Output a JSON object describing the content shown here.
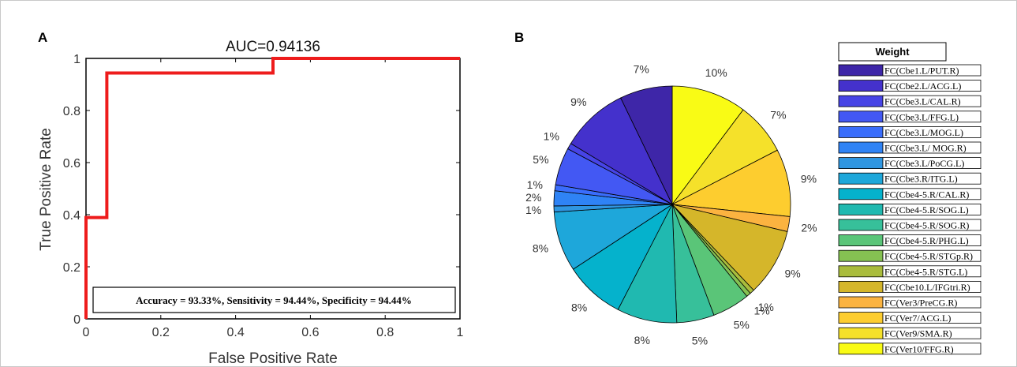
{
  "chart_data": [
    {
      "type": "line",
      "panel": "A",
      "title": "AUC=0.94136",
      "xlabel": "False Positive Rate",
      "ylabel": "True Positive Rate",
      "xlim": [
        0,
        1
      ],
      "ylim": [
        0,
        1
      ],
      "xticks": [
        "0",
        "0.2",
        "0.4",
        "0.6",
        "0.8",
        "1"
      ],
      "yticks": [
        "0",
        "0.2",
        "0.4",
        "0.6",
        "0.8",
        "1"
      ],
      "grid": false,
      "series": [
        {
          "x": [
            0,
            0,
            0.0556,
            0.0556,
            0.5,
            0.5,
            1
          ],
          "y": [
            0,
            0.389,
            0.389,
            0.944,
            0.944,
            1,
            1
          ],
          "color": "#ee1c1c"
        }
      ],
      "annotation": "Accuracy = 93.33%, Sensitivity = 94.44%, Specificity = 94.44%"
    },
    {
      "type": "pie",
      "panel": "B",
      "legend_title": "Weight",
      "legend_position": "right",
      "slices": [
        {
          "label": "FC(Cbe1.L/PUT.R)",
          "value": 7,
          "pct": "7%",
          "color": "#3e26a8"
        },
        {
          "label": "FC(Cbe2.L/ACG.L)",
          "value": 9,
          "pct": "9%",
          "color": "#4431cc"
        },
        {
          "label": "FC(Cbe3.L/CAL.R)",
          "value": 0.8,
          "pct": "1%",
          "color": "#4744e6"
        },
        {
          "label": "FC(Cbe3.L/FFG.L)",
          "value": 5,
          "pct": "5%",
          "color": "#4358f3"
        },
        {
          "label": "FC(Cbe3.L/MOG.L)",
          "value": 0.8,
          "pct": "1%",
          "color": "#3a6dfb"
        },
        {
          "label": "FC(Cbe3.L/ MOG.R)",
          "value": 2,
          "pct": "2%",
          "color": "#2f83f5"
        },
        {
          "label": "FC(Cbe3.L/PoCG.L)",
          "value": 0.8,
          "pct": "1%",
          "color": "#2f96e1"
        },
        {
          "label": "FC(Cbe3.R/ITG.L)",
          "value": 8,
          "pct": "8%",
          "color": "#1ea7da"
        },
        {
          "label": "FC(Cbe4-5.R/CAL.R)",
          "value": 8,
          "pct": "8%",
          "color": "#05b2cc"
        },
        {
          "label": "FC(Cbe4-5.R/SOG.L)",
          "value": 8,
          "pct": "8%",
          "color": "#20b9b0"
        },
        {
          "label": "FC(Cbe4-5.R/SOG.R)",
          "value": 5,
          "pct": "5%",
          "color": "#37c09a"
        },
        {
          "label": "FC(Cbe4-5.R/PHG.L)",
          "value": 5,
          "pct": "5%",
          "color": "#5ac578"
        },
        {
          "label": "FC(Cbe4-5.R/STGp.R)",
          "value": 0.6,
          "pct": "1%",
          "color": "#85c152"
        },
        {
          "label": "FC(Cbe4-5.R/STG.L)",
          "value": 0.6,
          "pct": "1%",
          "color": "#a9bc3c"
        },
        {
          "label": "FC(Cbe10.L/IFGtri.R)",
          "value": 9,
          "pct": "9%",
          "color": "#d5b62a"
        },
        {
          "label": "FC(Ver3/PreCG.R)",
          "value": 2,
          "pct": "2%",
          "color": "#fbb340"
        },
        {
          "label": "FC(Ver7/ACG.L)",
          "value": 9,
          "pct": "9%",
          "color": "#fdcd2f"
        },
        {
          "label": "FC(Ver9/SMA.R)",
          "value": 7,
          "pct": "7%",
          "color": "#f5e12a"
        },
        {
          "label": "FC(Ver10/FFG.R)",
          "value": 10,
          "pct": "10%",
          "color": "#f9fb15"
        }
      ]
    }
  ]
}
